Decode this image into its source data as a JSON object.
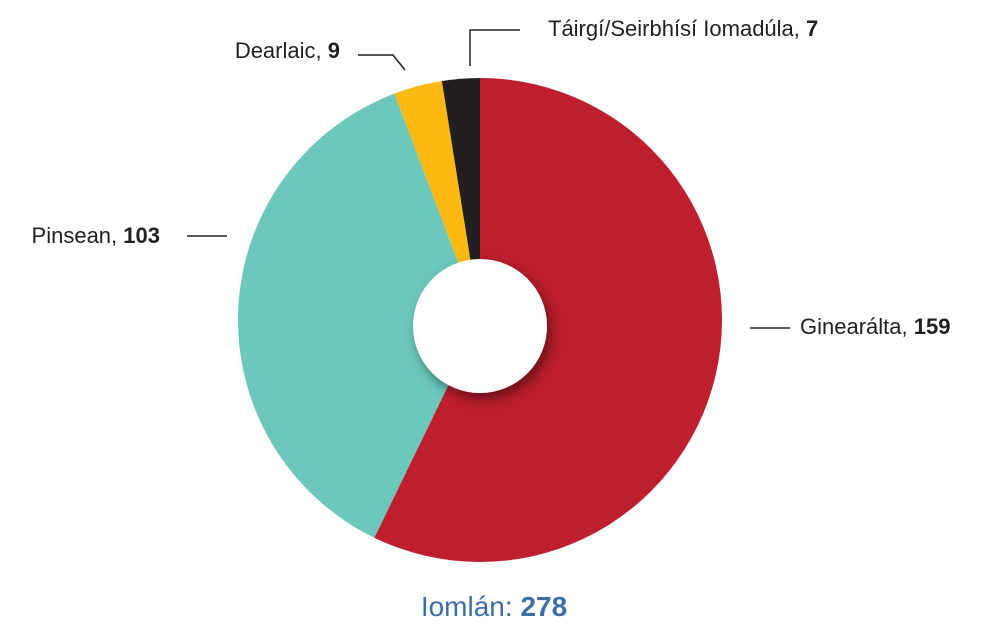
{
  "chart_data": {
    "type": "donut",
    "categories": [
      "Ginearálta",
      "Pinsean",
      "Dearlaic",
      "Táirgí/Seirbhísí Iomadúla"
    ],
    "values": [
      159,
      103,
      9,
      7
    ],
    "colors": [
      "#be1e2d",
      "#6dc7bb",
      "#fdb913",
      "#231f20"
    ],
    "total_label": "Iomlán:",
    "total": 278
  }
}
